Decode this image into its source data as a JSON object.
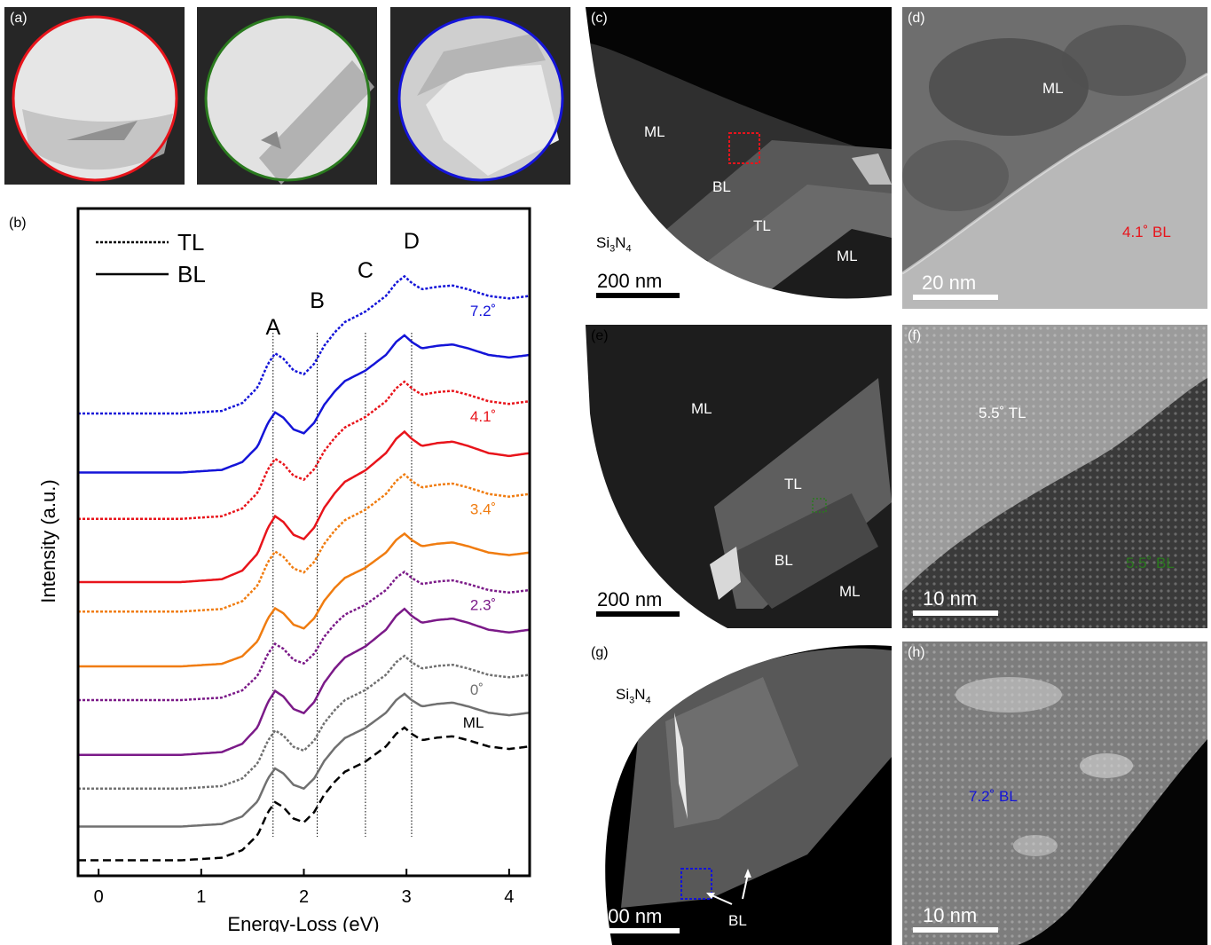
{
  "figure": {
    "panel_a": {
      "label": "(a)",
      "circle_colors": [
        "#e8141b",
        "#2a7a1e",
        "#1414d8"
      ]
    },
    "panel_b": {
      "label": "(b)"
    },
    "panel_c": {
      "label": "(c)",
      "regions": [
        "ML",
        "BL",
        "TL",
        "ML"
      ],
      "substrate": "Si",
      "substrate_sub1": "3",
      "substrate_mid": "N",
      "substrate_sub2": "4",
      "scale": "200 nm",
      "box_color": "#e8141b"
    },
    "panel_d": {
      "label": "(d)",
      "region": "ML",
      "annotation": "4.1˚ BL",
      "annotation_color": "#e8141b",
      "scale": "20 nm"
    },
    "panel_e": {
      "label": "(e)",
      "regions": [
        "ML",
        "TL",
        "BL",
        "ML"
      ],
      "scale": "200 nm",
      "box_color": "#2a7a1e"
    },
    "panel_f": {
      "label": "(f)",
      "annotation_tl": "5.5˚ TL",
      "annotation_bl": "5.5˚ BL",
      "annotation_bl_color": "#2a7a1e",
      "scale": "10 nm"
    },
    "panel_g": {
      "label": "(g)",
      "substrate": "Si",
      "substrate_sub1": "3",
      "substrate_mid": "N",
      "substrate_sub2": "4",
      "arrow_label": "BL",
      "scale": "200 nm",
      "box_color": "#1414d8"
    },
    "panel_h": {
      "label": "(h)",
      "annotation": "7.2˚ BL",
      "annotation_color": "#1414d8",
      "scale": "10 nm"
    }
  },
  "chart_data": {
    "type": "line",
    "xlabel": "Energy-Loss (eV)",
    "ylabel": "Intensity (a.u.)",
    "xlim": [
      -0.2,
      4.2
    ],
    "xticks": [
      "0",
      "1",
      "2",
      "3",
      "4"
    ],
    "yticks": "none",
    "legend": {
      "placement": "top-left",
      "entries": [
        {
          "name": "TL",
          "style": "dotted"
        },
        {
          "name": "BL",
          "style": "solid"
        }
      ]
    },
    "peak_markers": [
      {
        "label": "A",
        "x": 1.7
      },
      {
        "label": "B",
        "x": 2.13
      },
      {
        "label": "C",
        "x": 2.6
      },
      {
        "label": "D",
        "x": 3.05
      }
    ],
    "profile_note": "normalized intensity profile shared by all traces; each trace offset vertically",
    "profile": {
      "x": [
        -0.2,
        0.8,
        1.0,
        1.2,
        1.4,
        1.55,
        1.65,
        1.72,
        1.8,
        1.9,
        2.0,
        2.1,
        2.2,
        2.3,
        2.4,
        2.5,
        2.6,
        2.7,
        2.8,
        2.9,
        2.98,
        3.05,
        3.15,
        3.3,
        3.45,
        3.6,
        3.8,
        4.0,
        4.2
      ],
      "y": [
        0,
        0,
        0.01,
        0.02,
        0.08,
        0.2,
        0.38,
        0.46,
        0.42,
        0.33,
        0.3,
        0.38,
        0.52,
        0.62,
        0.7,
        0.74,
        0.78,
        0.84,
        0.9,
        1.0,
        1.05,
        1.0,
        0.95,
        0.97,
        0.98,
        0.95,
        0.9,
        0.88,
        0.9
      ]
    },
    "series": [
      {
        "name": "7.2˚",
        "layer": "TL",
        "color": "#1414d8",
        "style": "dotted",
        "offset": 5.2,
        "scale": 1.55
      },
      {
        "name": "7.2˚",
        "layer": "BL",
        "color": "#1414d8",
        "style": "solid",
        "offset": 4.5,
        "scale": 1.55
      },
      {
        "name": "4.1˚",
        "layer": "TL",
        "color": "#e8141b",
        "style": "dotted",
        "offset": 3.95,
        "scale": 1.55
      },
      {
        "name": "4.1˚",
        "layer": "BL",
        "color": "#e8141b",
        "style": "solid",
        "offset": 3.2,
        "scale": 1.7
      },
      {
        "name": "3.4˚",
        "layer": "TL",
        "color": "#f07c10",
        "style": "dotted",
        "offset": 2.85,
        "scale": 1.55
      },
      {
        "name": "3.4˚",
        "layer": "BL",
        "color": "#f07c10",
        "style": "solid",
        "offset": 2.2,
        "scale": 1.5
      },
      {
        "name": "2.3˚",
        "layer": "TL",
        "color": "#7b1a88",
        "style": "dotted",
        "offset": 1.8,
        "scale": 1.45
      },
      {
        "name": "2.3˚",
        "layer": "BL",
        "color": "#7b1a88",
        "style": "solid",
        "offset": 1.15,
        "scale": 1.65
      },
      {
        "name": "0˚",
        "layer": "TL",
        "color": "#707070",
        "style": "dotted",
        "offset": 0.75,
        "scale": 1.5
      },
      {
        "name": "0˚",
        "layer": "BL",
        "color": "#707070",
        "style": "solid",
        "offset": 0.3,
        "scale": 1.5
      },
      {
        "name": "ML",
        "layer": "ML",
        "color": "#000000",
        "style": "dashed",
        "offset": -0.1,
        "scale": 1.5
      }
    ],
    "series_labels": [
      "7.2˚",
      "4.1˚",
      "3.4˚",
      "2.3˚",
      "0˚",
      "ML"
    ]
  }
}
